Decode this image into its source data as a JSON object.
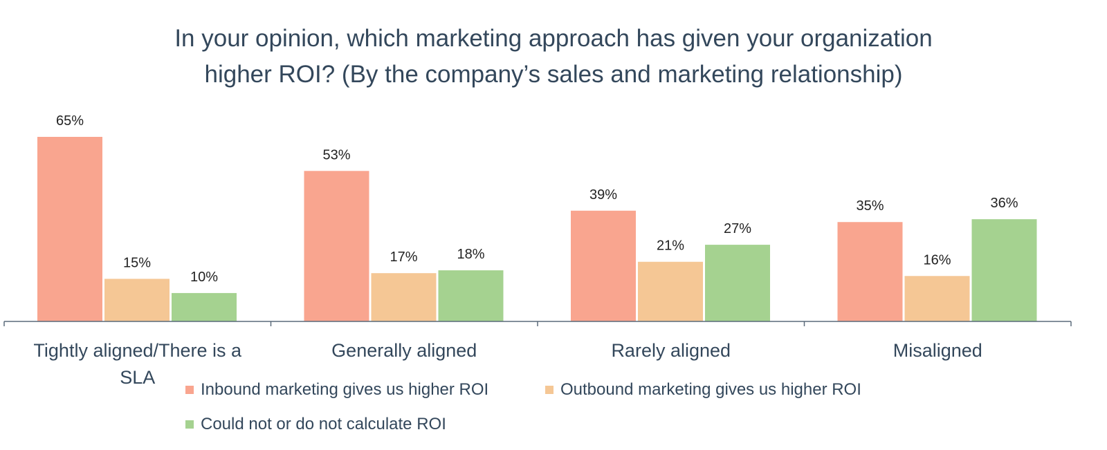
{
  "chart_data": {
    "type": "bar",
    "title_lines": [
      "In your opinion, which marketing approach has given your organization",
      "higher ROI? (By the company’s sales and marketing relationship)"
    ],
    "categories": [
      "Tightly aligned/There is a SLA",
      "Generally aligned",
      "Rarely aligned",
      "Misaligned"
    ],
    "category_label_lines": [
      [
        "Tightly aligned/There is a",
        "SLA"
      ],
      [
        "Generally aligned"
      ],
      [
        "Rarely aligned"
      ],
      [
        "Misaligned"
      ]
    ],
    "series": [
      {
        "name": "Inbound marketing gives us higher ROI",
        "values": [
          65,
          53,
          39,
          35
        ],
        "labels": [
          "65%",
          "53%",
          "39%",
          "35%"
        ],
        "color": "#f9a58f"
      },
      {
        "name": "Outbound marketing gives us higher ROI",
        "values": [
          15,
          17,
          21,
          16
        ],
        "labels": [
          "15%",
          "17%",
          "21%",
          "16%"
        ],
        "color": "#f5c795"
      },
      {
        "name": "Could not or do not calculate ROI",
        "values": [
          10,
          18,
          27,
          36
        ],
        "labels": [
          "10%",
          "18%",
          "27%",
          "36%"
        ],
        "color": "#a5d290"
      }
    ],
    "ylim": [
      0,
      65
    ],
    "legend_position": "bottom",
    "grid": false
  }
}
